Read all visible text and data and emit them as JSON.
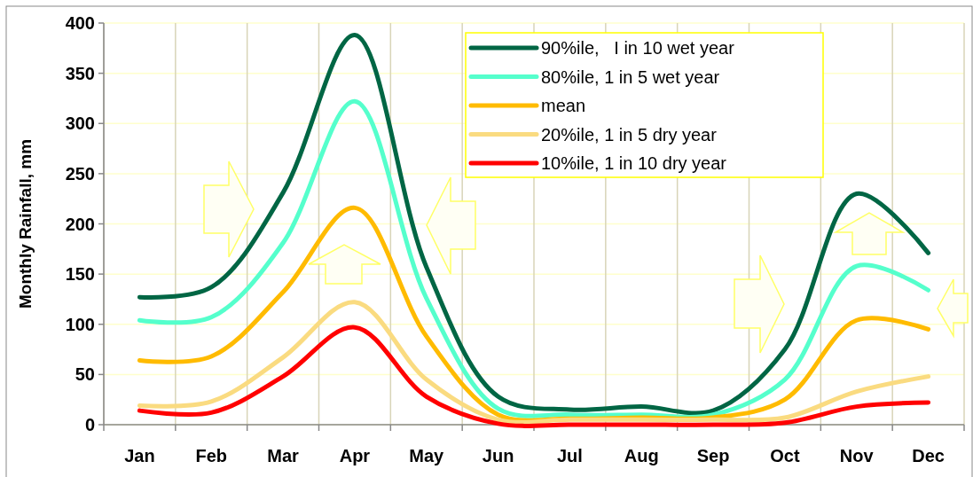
{
  "chart_data": {
    "type": "line",
    "ylabel": "Monthly Rainfall, mm",
    "categories": [
      "Jan",
      "Feb",
      "Mar",
      "Apr",
      "May",
      "Jun",
      "Jul",
      "Aug",
      "Sep",
      "Oct",
      "Nov",
      "Dec"
    ],
    "series": [
      {
        "name": "90%ile,   I in 10 wet year",
        "color": "#006644",
        "values": [
          127,
          137,
          231,
          388,
          157,
          28,
          15,
          18,
          14,
          75,
          230,
          171
        ]
      },
      {
        "name": "80%ile, 1 in 5 wet year",
        "color": "#55ffcc",
        "values": [
          104,
          107,
          181,
          322,
          126,
          16,
          10,
          10,
          10,
          45,
          158,
          134
        ]
      },
      {
        "name": "mean",
        "color": "#ffbb00",
        "values": [
          64,
          68,
          132,
          216,
          88,
          10,
          6,
          7,
          7,
          25,
          104,
          95
        ]
      },
      {
        "name": "20%ile, 1 in 5 dry year",
        "color": "#fadb80",
        "values": [
          19,
          23,
          67,
          122,
          45,
          5,
          5,
          5,
          5,
          7,
          33,
          48
        ]
      },
      {
        "name": "10%ile, 1 in 10 dry year",
        "color": "#ff0000",
        "values": [
          14,
          12,
          48,
          97,
          28,
          1,
          0,
          0,
          0,
          2,
          18,
          22
        ]
      }
    ],
    "ylim": [
      0,
      400
    ],
    "yticks": [
      0,
      50,
      100,
      150,
      200,
      250,
      300,
      350,
      400
    ],
    "grid": true,
    "legend": "top right",
    "marker": "none",
    "line_style": "solid"
  }
}
